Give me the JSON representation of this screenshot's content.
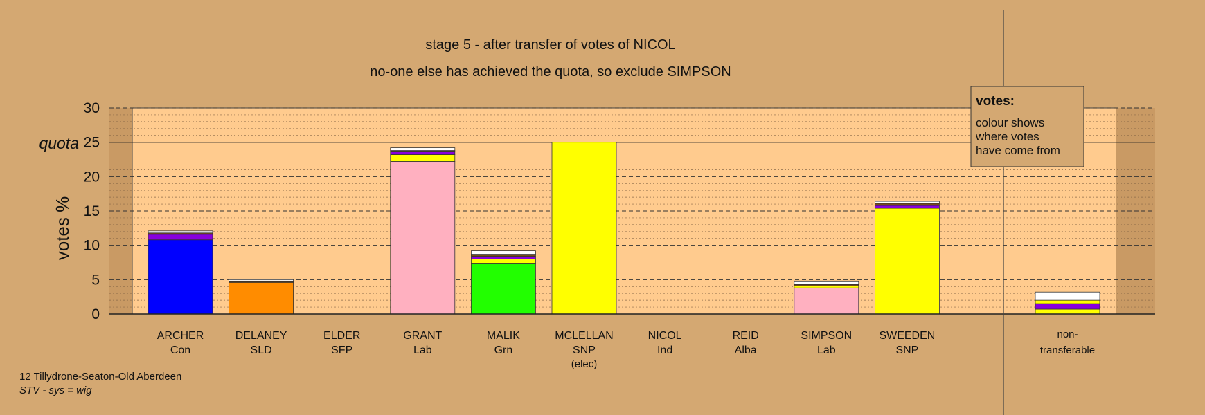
{
  "chart_data": {
    "type": "bar",
    "title": "stage 5 - after transfer of votes of NICOL",
    "subtitle": "no-one else has achieved the quota, so exclude SIMPSON",
    "ylabel": "votes %",
    "ylim": [
      0,
      30
    ],
    "yticks": [
      0,
      5,
      10,
      15,
      20,
      25,
      30
    ],
    "quota": 25,
    "quota_label": "quota",
    "grid": true,
    "legend": {
      "title": "votes:",
      "lines": [
        "colour shows",
        "where votes",
        "have come from"
      ],
      "placement": "top-right"
    },
    "footer": {
      "line1": "12 Tillydrone-Seaton-Old Aberdeen",
      "line2": "STV - sys = wig"
    },
    "colors": {
      "Con": "#0000FF",
      "SLD": "#FF8C00",
      "Lab": "#FFB0C0",
      "Grn": "#22FF00",
      "SNP": "#FFFF00",
      "Alba": "#8B0000",
      "Ind": "#8800DD",
      "other": "#FFFFFF",
      "misc": "#7A4A1A"
    },
    "categories": [
      {
        "name": "ARCHER",
        "party": "Con",
        "segments": [
          {
            "source": "Con",
            "value": 10.8
          },
          {
            "source": "Ind",
            "value": 0.8
          },
          {
            "source": "misc",
            "value": 0.2
          },
          {
            "source": "other",
            "value": 0.3
          }
        ]
      },
      {
        "name": "DELANEY",
        "party": "SLD",
        "segments": [
          {
            "source": "SLD",
            "value": 4.6
          },
          {
            "source": "misc",
            "value": 0.2
          },
          {
            "source": "other",
            "value": 0.2
          }
        ]
      },
      {
        "name": "ELDER",
        "party": "SFP",
        "segments": []
      },
      {
        "name": "GRANT",
        "party": "Lab",
        "segments": [
          {
            "source": "Lab",
            "value": 22.2
          },
          {
            "source": "SNP",
            "value": 1.0
          },
          {
            "source": "Ind",
            "value": 0.4
          },
          {
            "source": "misc",
            "value": 0.2
          },
          {
            "source": "other",
            "value": 0.4
          }
        ]
      },
      {
        "name": "MALIK",
        "party": "Grn",
        "segments": [
          {
            "source": "Grn",
            "value": 7.4
          },
          {
            "source": "SNP",
            "value": 0.6
          },
          {
            "source": "Ind",
            "value": 0.4
          },
          {
            "source": "misc",
            "value": 0.3
          },
          {
            "source": "other",
            "value": 0.5
          }
        ]
      },
      {
        "name": "MCLELLAN",
        "party": "SNP",
        "note": "(elec)",
        "segments": [
          {
            "source": "SNP",
            "value": 25.0
          }
        ]
      },
      {
        "name": "NICOL",
        "party": "Ind",
        "segments": []
      },
      {
        "name": "REID",
        "party": "Alba",
        "segments": []
      },
      {
        "name": "SIMPSON",
        "party": "Lab",
        "segments": [
          {
            "source": "Lab",
            "value": 3.8
          },
          {
            "source": "SNP",
            "value": 0.3
          },
          {
            "source": "misc",
            "value": 0.2
          },
          {
            "source": "other",
            "value": 0.5
          }
        ]
      },
      {
        "name": "SWEEDEN",
        "party": "SNP",
        "segments": [
          {
            "source": "SNP",
            "value": 8.6
          },
          {
            "source": "SNP",
            "value": 6.8
          },
          {
            "source": "Ind",
            "value": 0.4
          },
          {
            "source": "misc",
            "value": 0.3
          },
          {
            "source": "other",
            "value": 0.3
          }
        ]
      }
    ],
    "nontransferable": {
      "label_line1": "non-",
      "label_line2": "transferable",
      "segments": [
        {
          "source": "SNP",
          "value": 0.7
        },
        {
          "source": "Ind",
          "value": 0.8
        },
        {
          "source": "SNP",
          "value": 0.5
        },
        {
          "source": "other",
          "value": 1.2
        }
      ]
    }
  }
}
